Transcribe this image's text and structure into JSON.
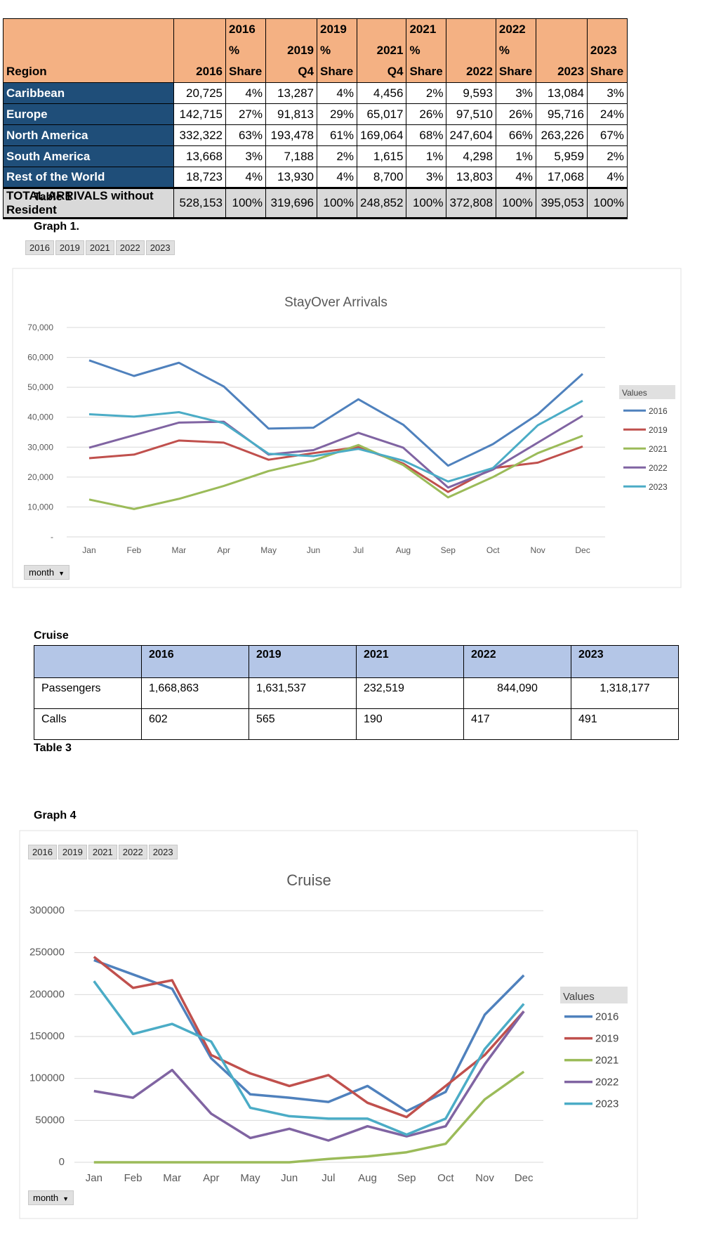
{
  "table1": {
    "header": [
      "Region",
      "2016",
      "2016 %\nShare",
      "2019 Q4",
      "2019 %\nShare",
      "2021 Q4",
      "2021 %\nShare",
      "2022",
      "2022 %\nShare",
      "2023",
      "2023\nShare"
    ],
    "rows": [
      [
        "Caribbean",
        "20,725",
        "4%",
        "13,287",
        "4%",
        "4,456",
        "2%",
        "9,593",
        "3%",
        "13,084",
        "3%"
      ],
      [
        "Europe",
        "142,715",
        "27%",
        "91,813",
        "29%",
        "65,017",
        "26%",
        "97,510",
        "26%",
        "95,716",
        "24%"
      ],
      [
        "North America",
        "332,322",
        "63%",
        "193,478",
        "61%",
        "169,064",
        "68%",
        "247,604",
        "66%",
        "263,226",
        "67%"
      ],
      [
        "South America",
        "13,668",
        "3%",
        "7,188",
        "2%",
        "1,615",
        "1%",
        "4,298",
        "1%",
        "5,959",
        "2%"
      ],
      [
        "Rest of the World",
        "18,723",
        "4%",
        "13,930",
        "4%",
        "8,700",
        "3%",
        "13,803",
        "4%",
        "17,068",
        "4%"
      ]
    ],
    "total": [
      "TOTAL ARRIVALS without Resident",
      "528,153",
      "100%",
      "319,696",
      "100%",
      "248,852",
      "100%",
      "372,808",
      "100%",
      "395,053",
      "100%"
    ],
    "caption": "Table 1"
  },
  "graph1_caption": "Graph 1.",
  "graph4_caption": "Graph 4",
  "cruise_caption": "Cruise",
  "table3": {
    "header": [
      "",
      "2016",
      "2019",
      "2021",
      "2022",
      "2023"
    ],
    "rows": [
      [
        "Passengers",
        "1,668,863",
        "1,631,537",
        "232,519",
        "844,090",
        "1,318,177"
      ],
      [
        "Calls",
        "602",
        "565",
        "190",
        "417",
        "491"
      ]
    ],
    "caption": "Table 3"
  },
  "slicer_years": [
    "2016",
    "2019",
    "2021",
    "2022",
    "2023"
  ],
  "month_filter": "month",
  "legend_title": "Values",
  "colors": {
    "2016": "#4f81bd",
    "2019": "#c0504d",
    "2021": "#9bbb59",
    "2022": "#8064a2",
    "2023": "#4bacc6"
  },
  "chart_data": [
    {
      "type": "line",
      "title": "StayOver Arrivals",
      "categories": [
        "Jan",
        "Feb",
        "Mar",
        "Apr",
        "May",
        "Jun",
        "Jul",
        "Aug",
        "Sep",
        "Oct",
        "Nov",
        "Dec"
      ],
      "ylim": [
        0,
        70000
      ],
      "yticks": [
        "-",
        "10,000",
        "20,000",
        "30,000",
        "40,000",
        "50,000",
        "60,000",
        "70,000"
      ],
      "grid": true,
      "legend": "right",
      "series": [
        {
          "name": "2016",
          "values": [
            59000,
            53800,
            58200,
            50300,
            36200,
            36500,
            46000,
            37500,
            23800,
            31000,
            41000,
            54500
          ]
        },
        {
          "name": "2019",
          "values": [
            26300,
            27500,
            32200,
            31500,
            25800,
            28000,
            30000,
            24500,
            15000,
            23000,
            24800,
            30200
          ]
        },
        {
          "name": "2021",
          "values": [
            12500,
            9300,
            12700,
            17000,
            22000,
            25500,
            30700,
            24000,
            13200,
            20000,
            28000,
            33800
          ]
        },
        {
          "name": "2022",
          "values": [
            29800,
            34000,
            38200,
            38500,
            27500,
            29000,
            34800,
            29800,
            16500,
            22500,
            31500,
            40500
          ]
        },
        {
          "name": "2023",
          "values": [
            41000,
            40200,
            41700,
            38000,
            27800,
            27000,
            29400,
            25500,
            18500,
            23000,
            37300,
            45500
          ]
        }
      ]
    },
    {
      "type": "line",
      "title": "Cruise",
      "categories": [
        "Jan",
        "Feb",
        "Mar",
        "Apr",
        "May",
        "Jun",
        "Jul",
        "Aug",
        "Sep",
        "Oct",
        "Nov",
        "Dec"
      ],
      "ylim": [
        0,
        300000
      ],
      "yticks": [
        "0",
        "50000",
        "100000",
        "150000",
        "200000",
        "250000",
        "300000"
      ],
      "grid": true,
      "legend": "right",
      "series": [
        {
          "name": "2016",
          "values": [
            241000,
            224000,
            207000,
            124000,
            81000,
            77000,
            72000,
            91000,
            61000,
            84000,
            176000,
            223000
          ]
        },
        {
          "name": "2019",
          "values": [
            245000,
            208000,
            217000,
            128000,
            106000,
            91000,
            104000,
            71000,
            54000,
            91000,
            128000,
            180000
          ]
        },
        {
          "name": "2021",
          "values": [
            0,
            0,
            0,
            0,
            0,
            0,
            4000,
            7000,
            12000,
            22000,
            75000,
            108000
          ]
        },
        {
          "name": "2022",
          "values": [
            85000,
            77000,
            110000,
            58000,
            29000,
            40000,
            26000,
            43000,
            31000,
            43000,
            117000,
            180000
          ]
        },
        {
          "name": "2023",
          "values": [
            216000,
            153000,
            165000,
            144000,
            65000,
            55000,
            52000,
            52000,
            33000,
            52000,
            135000,
            189000
          ]
        }
      ]
    }
  ]
}
